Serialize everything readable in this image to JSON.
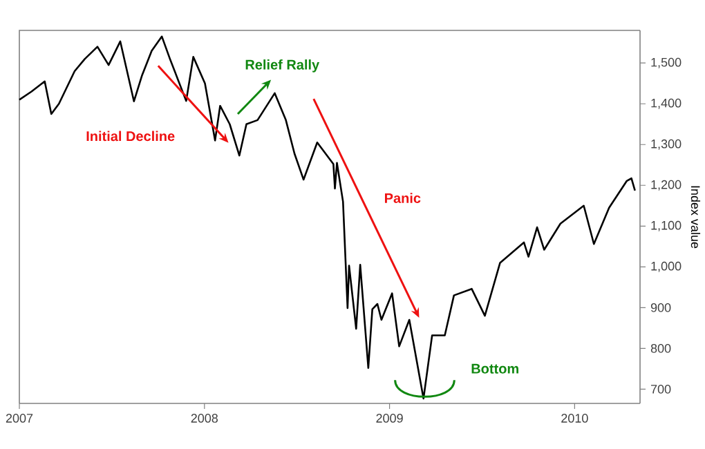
{
  "chart_data": {
    "type": "line",
    "ylabel": "Index value",
    "x": [
      "2007-01-01",
      "2007-01-25",
      "2007-02-20",
      "2007-03-05",
      "2007-03-20",
      "2007-04-20",
      "2007-05-10",
      "2007-06-04",
      "2007-06-26",
      "2007-07-19",
      "2007-08-15",
      "2007-08-31",
      "2007-09-19",
      "2007-10-09",
      "2007-10-25",
      "2007-11-26",
      "2007-12-10",
      "2008-01-02",
      "2008-01-22",
      "2008-02-01",
      "2008-02-20",
      "2008-03-10",
      "2008-03-24",
      "2008-04-15",
      "2008-05-19",
      "2008-06-10",
      "2008-06-27",
      "2008-07-15",
      "2008-08-11",
      "2008-09-12",
      "2008-09-15",
      "2008-09-19",
      "2008-10-01",
      "2008-10-10",
      "2008-10-13",
      "2008-10-27",
      "2008-11-04",
      "2008-11-20",
      "2008-11-28",
      "2008-12-08",
      "2008-12-16",
      "2009-01-06",
      "2009-01-20",
      "2009-02-09",
      "2009-03-09",
      "2009-03-26",
      "2009-04-20",
      "2009-05-08",
      "2009-06-12",
      "2009-07-08",
      "2009-08-07",
      "2009-09-23",
      "2009-10-02",
      "2009-10-19",
      "2009-11-02",
      "2009-12-04",
      "2010-01-19",
      "2010-02-08",
      "2010-03-10",
      "2010-04-14",
      "2010-04-23",
      "2010-04-30"
    ],
    "values": [
      1410,
      1430,
      1455,
      1375,
      1400,
      1480,
      1510,
      1540,
      1495,
      1553,
      1406,
      1470,
      1530,
      1565,
      1510,
      1407,
      1515,
      1450,
      1310,
      1395,
      1350,
      1273,
      1350,
      1360,
      1426,
      1360,
      1278,
      1214,
      1305,
      1252,
      1192,
      1255,
      1160,
      899,
      1003,
      848,
      1005,
      752,
      896,
      909,
      870,
      935,
      805,
      870,
      677,
      832,
      832,
      930,
      946,
      880,
      1010,
      1060,
      1025,
      1097,
      1042,
      1106,
      1150,
      1056,
      1145,
      1211,
      1217,
      1187
    ],
    "color": "#000000",
    "xlim": [
      "2007-01-01",
      "2010-05-10"
    ],
    "xticks": [
      "2007",
      "2008",
      "2009",
      "2010"
    ],
    "ylim": [
      665,
      1580
    ],
    "yticks": [
      {
        "value": 700,
        "label": "700"
      },
      {
        "value": 800,
        "label": "800"
      },
      {
        "value": 900,
        "label": "900"
      },
      {
        "value": 1000,
        "label": "1,000"
      },
      {
        "value": 1100,
        "label": "1,100"
      },
      {
        "value": 1200,
        "label": "1,200"
      },
      {
        "value": 1300,
        "label": "1,300"
      },
      {
        "value": 1400,
        "label": "1,400"
      },
      {
        "value": 1500,
        "label": "1,500"
      }
    ],
    "annotations": [
      "Initial Decline",
      "Relief Rally",
      "Panic",
      "Bottom"
    ],
    "grid": false
  }
}
